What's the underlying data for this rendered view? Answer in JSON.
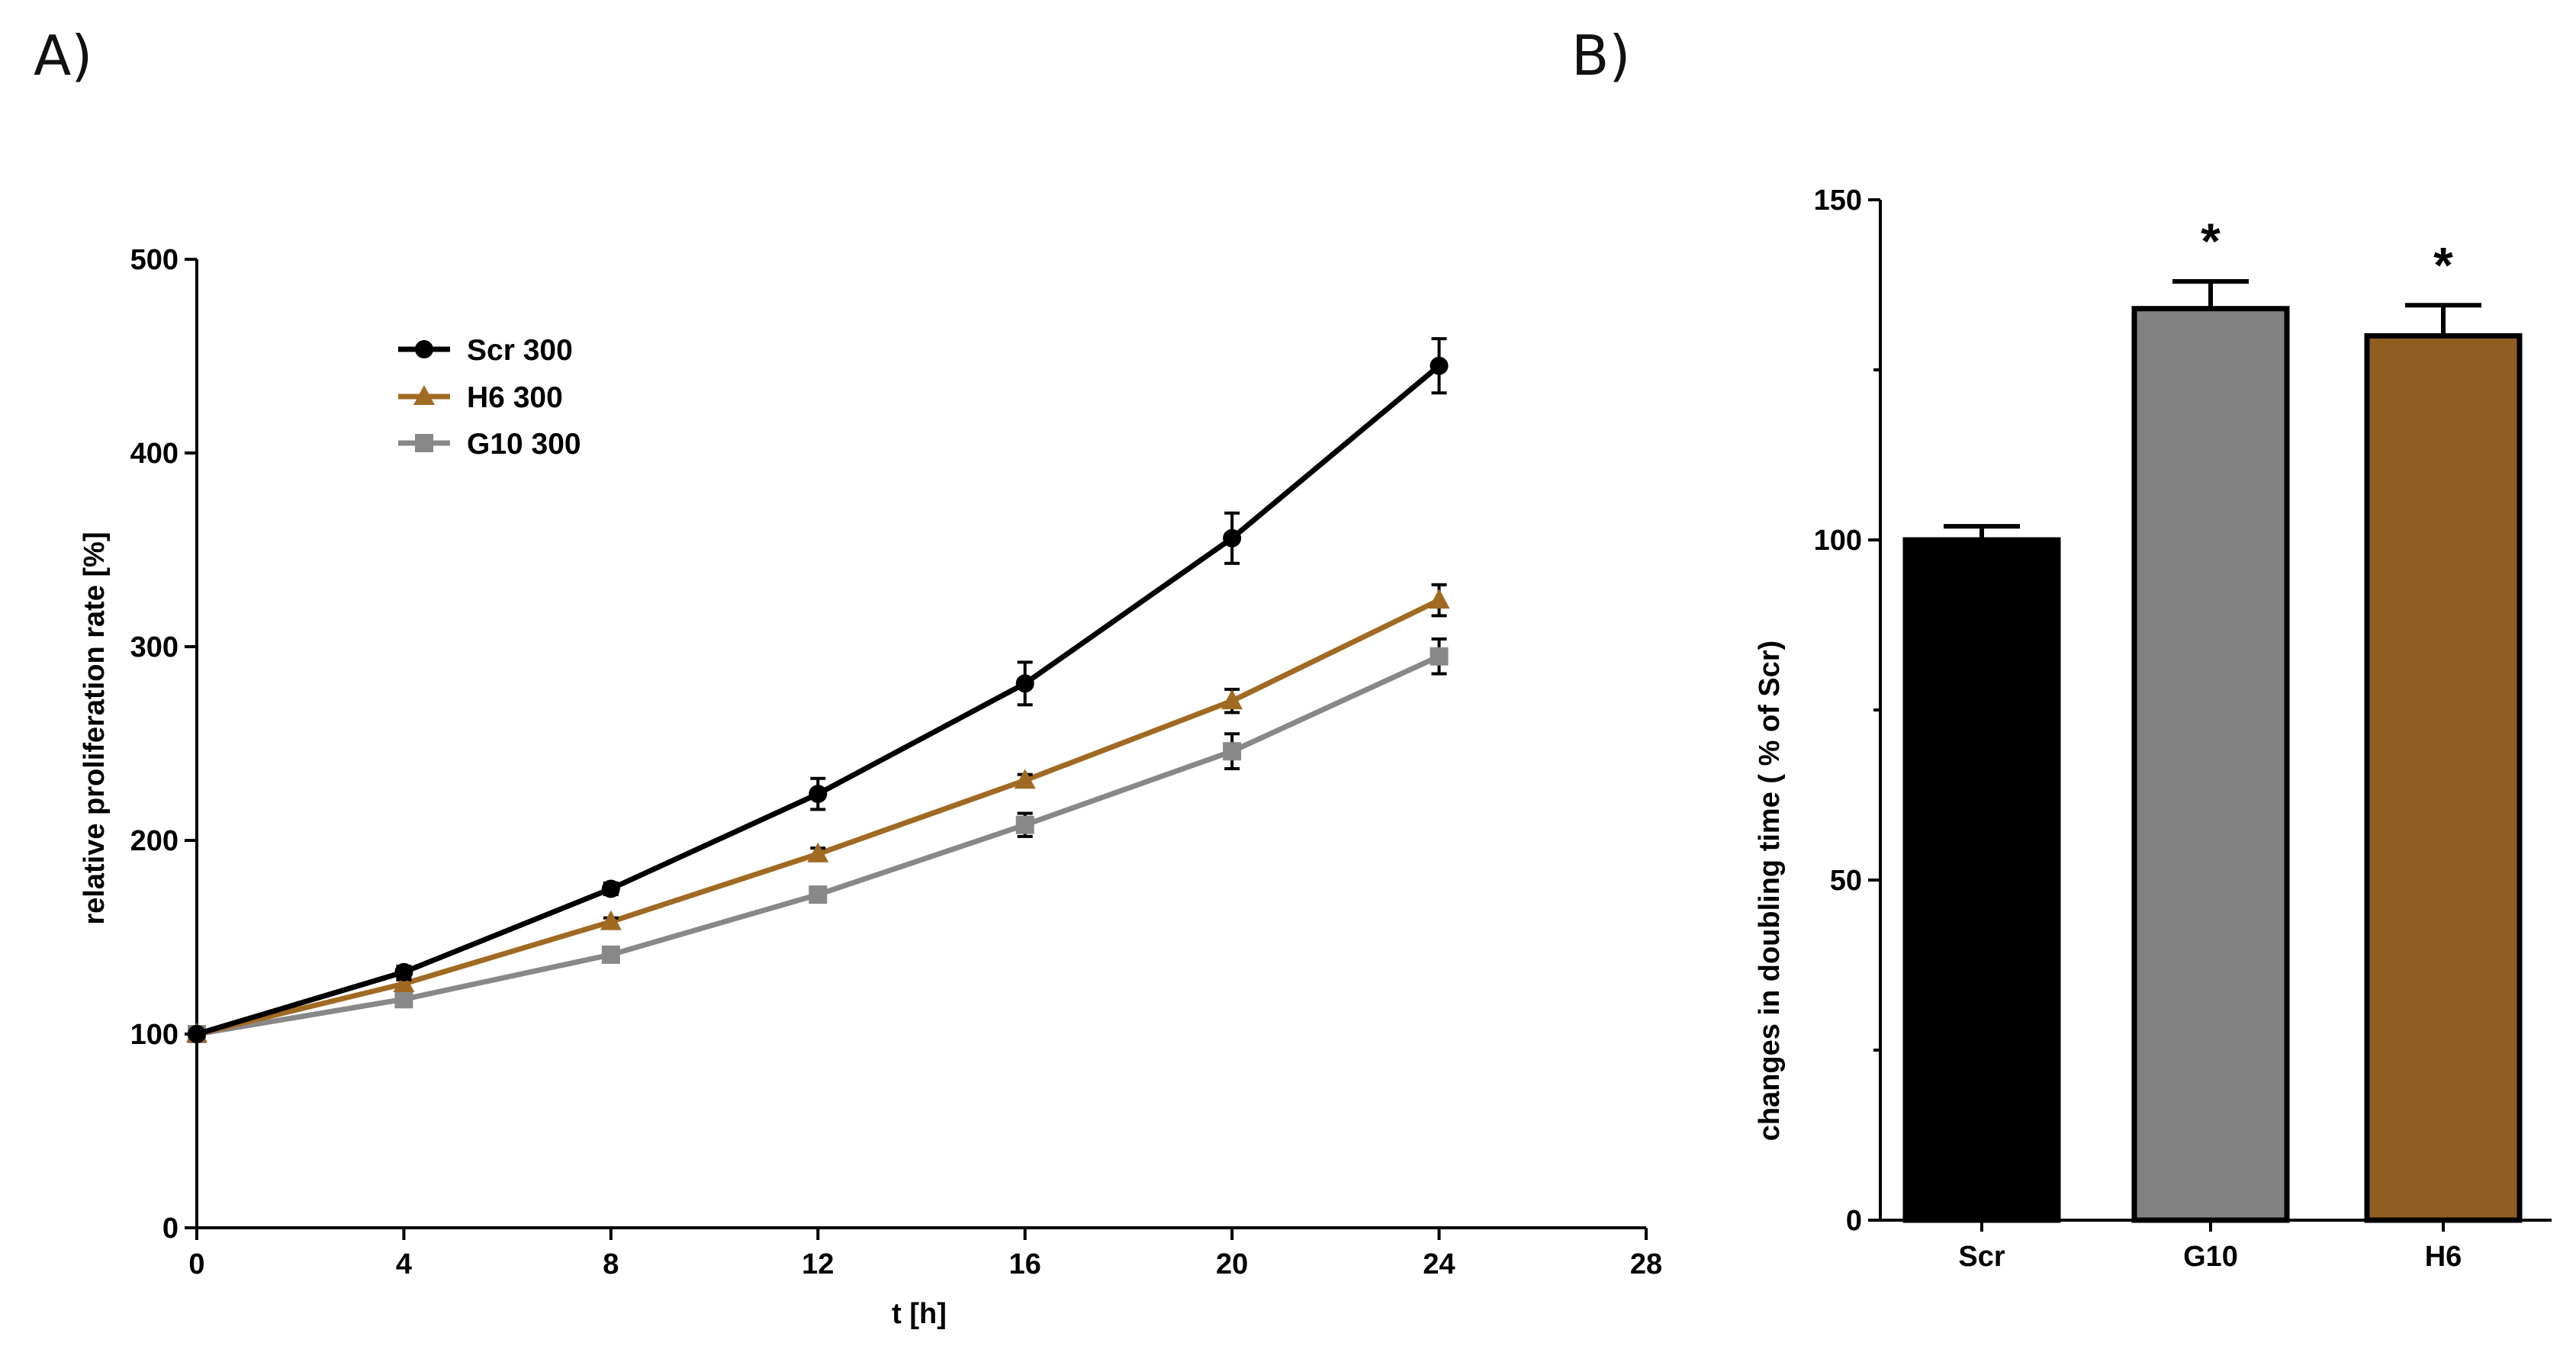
{
  "panels": {
    "a_label": "A)",
    "b_label": "B)"
  },
  "chart_data": [
    {
      "type": "line",
      "xlabel": "t [h]",
      "ylabel": "relative proliferation rate [%]",
      "xlim": [
        0,
        28
      ],
      "ylim": [
        0,
        500
      ],
      "xticks": [
        0,
        4,
        8,
        12,
        16,
        20,
        24,
        28
      ],
      "yticks": [
        0,
        100,
        200,
        300,
        400,
        500
      ],
      "x": [
        0,
        4,
        8,
        12,
        16,
        20,
        24
      ],
      "legend_position": "top-left",
      "series": [
        {
          "name": "Scr 300",
          "color": "#000000",
          "marker": "circle",
          "values": [
            100,
            132,
            175,
            224,
            281,
            356,
            445
          ],
          "errors": [
            0,
            3,
            3,
            8,
            11,
            13,
            14
          ]
        },
        {
          "name": "H6 300",
          "color": "#A06A22",
          "marker": "triangle",
          "values": [
            100,
            126,
            158,
            193,
            231,
            272,
            324
          ],
          "errors": [
            0,
            2,
            2,
            3,
            3,
            6,
            8
          ]
        },
        {
          "name": "G10 300",
          "color": "#888888",
          "marker": "square",
          "values": [
            100,
            118,
            141,
            172,
            208,
            246,
            295
          ],
          "errors": [
            0,
            2,
            3,
            3,
            6,
            9,
            9
          ]
        }
      ]
    },
    {
      "type": "bar",
      "ylabel": "changes in doubling time ( % of Scr)",
      "ylim": [
        0,
        150
      ],
      "yticks": [
        0,
        50,
        100,
        150
      ],
      "categories": [
        "Scr",
        "G10",
        "H6"
      ],
      "values": [
        100,
        134,
        130
      ],
      "errors": [
        2,
        4,
        4.5
      ],
      "colors": [
        "#000000",
        "#828282",
        "#8F5E20"
      ],
      "significance": [
        "",
        "*",
        "*"
      ]
    }
  ]
}
